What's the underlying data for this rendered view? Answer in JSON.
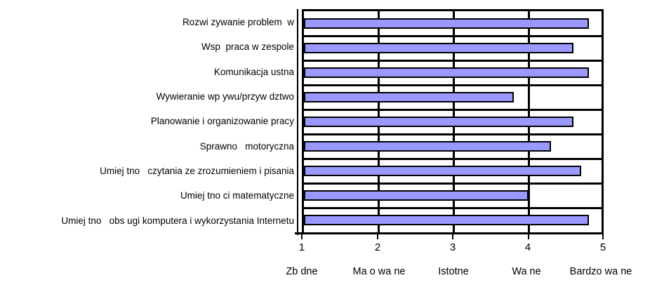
{
  "chart_data": {
    "type": "bar",
    "orientation": "horizontal",
    "title": "",
    "xlabel": "",
    "ylabel": "",
    "xlim": [
      1,
      5
    ],
    "grid": true,
    "legend": "none",
    "bar_color": "#9999FF",
    "bar_border_color": "#000000",
    "categories": [
      "Rozwi zywanie problem  w",
      "Wsp  praca w zespole",
      "Komunikacja ustna",
      "Wywieranie wp ywu/przyw dztwo",
      "Planowanie i organizowanie pracy",
      "Sprawno   motoryczna",
      "Umiej tno   czytania ze zrozumieniem i pisania",
      "Umiej tno ci matematyczne",
      "Umiej tno   obs ugi komputera i wykorzystania Internetu"
    ],
    "values": [
      4.8,
      4.6,
      4.8,
      3.8,
      4.6,
      4.3,
      4.7,
      4.0,
      4.8
    ],
    "x_ticks": [
      "1",
      "2",
      "3",
      "4",
      "5"
    ],
    "x_tick_descriptions": [
      "Zb dne",
      "Ma o wa ne",
      "Istotne",
      "Wa ne",
      "Bardzo wa ne"
    ]
  }
}
